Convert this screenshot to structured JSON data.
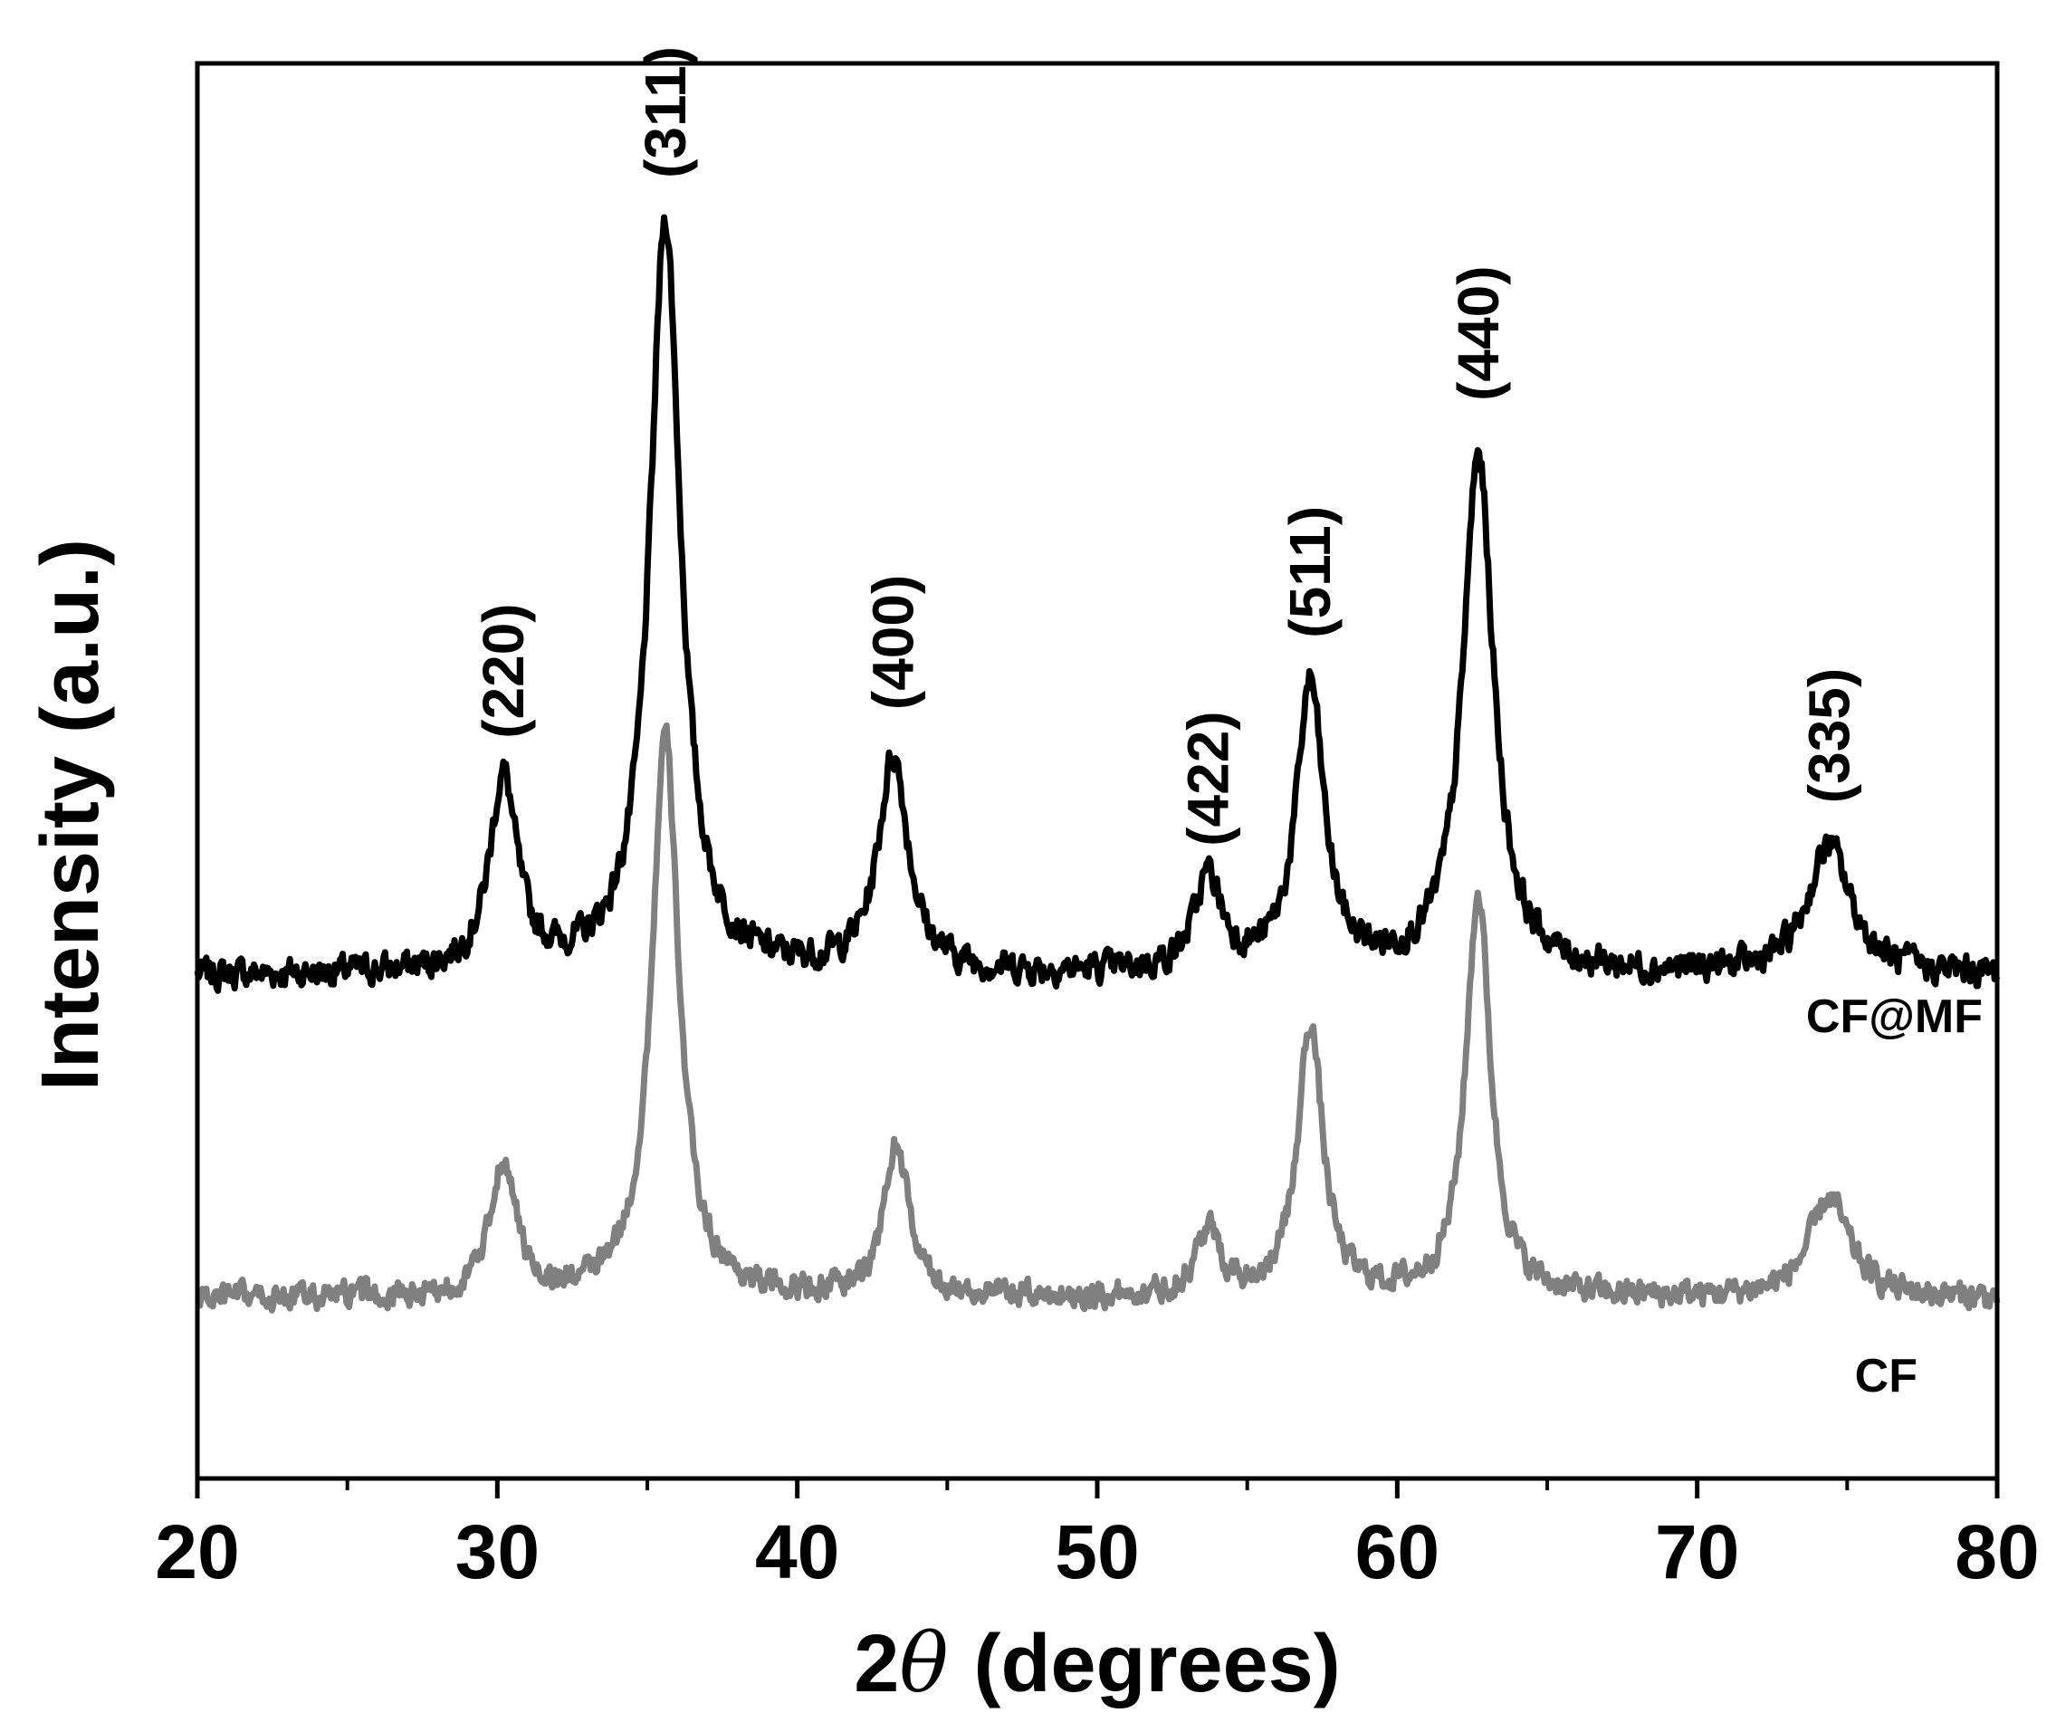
{
  "chart_data": {
    "type": "line",
    "xlabel_prefix": "2",
    "xlabel_symbol": "θ",
    "xlabel_suffix": "(degrees)",
    "ylabel": "Intensity (a.u.)",
    "xlim": [
      20,
      80
    ],
    "x_major_ticks": [
      20,
      30,
      40,
      50,
      60,
      70,
      80
    ],
    "x_tick_labels": [
      "20",
      "30",
      "40",
      "50",
      "60",
      "70",
      "80"
    ],
    "x_minor_ticks": [
      25,
      35,
      45,
      55,
      65,
      75
    ],
    "grid": false,
    "y_ticks_shown": false,
    "series": [
      {
        "name": "CF@MF",
        "color": "#000000",
        "baseline": 0.45,
        "noise": 0.032,
        "peaks": [
          {
            "x": 30.2,
            "height": 0.27,
            "width": 0.55
          },
          {
            "x": 35.6,
            "height": 1.05,
            "width": 0.62
          },
          {
            "x": 43.2,
            "height": 0.3,
            "width": 0.6
          },
          {
            "x": 53.7,
            "height": 0.13,
            "width": 0.55
          },
          {
            "x": 57.1,
            "height": 0.4,
            "width": 0.55
          },
          {
            "x": 62.7,
            "height": 0.72,
            "width": 0.62
          },
          {
            "x": 74.4,
            "height": 0.18,
            "width": 0.85
          }
        ]
      },
      {
        "name": "CF",
        "color": "#808080",
        "baseline": 0.0,
        "noise": 0.028,
        "peaks": [
          {
            "x": 30.2,
            "height": 0.19,
            "width": 0.5
          },
          {
            "x": 35.6,
            "height": 0.78,
            "width": 0.55
          },
          {
            "x": 43.3,
            "height": 0.21,
            "width": 0.5
          },
          {
            "x": 53.7,
            "height": 0.09,
            "width": 0.5
          },
          {
            "x": 57.1,
            "height": 0.38,
            "width": 0.5
          },
          {
            "x": 62.7,
            "height": 0.56,
            "width": 0.5
          },
          {
            "x": 74.4,
            "height": 0.14,
            "width": 0.8
          }
        ]
      }
    ],
    "peak_labels": [
      {
        "text": "(220)",
        "x": 30.2,
        "y": 0.78
      },
      {
        "text": "(311)",
        "x": 35.6,
        "y": 1.56
      },
      {
        "text": "(400)",
        "x": 43.2,
        "y": 0.82
      },
      {
        "text": "(422)",
        "x": 53.7,
        "y": 0.63
      },
      {
        "text": "(511)",
        "x": 57.1,
        "y": 0.92
      },
      {
        "text": "(440)",
        "x": 62.7,
        "y": 1.25
      },
      {
        "text": "(335)",
        "x": 74.4,
        "y": 0.69
      }
    ],
    "ylim": [
      -0.25,
      1.72
    ]
  }
}
